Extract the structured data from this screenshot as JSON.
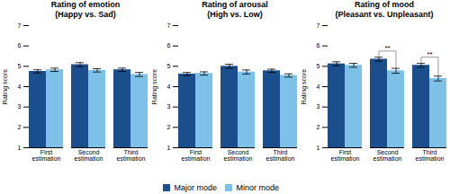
{
  "chart_data": [
    {
      "type": "bar",
      "title": "Rating of emotion\n(Happy vs. Sad)",
      "categories": [
        "First\nestimation",
        "Second\nestimation",
        "Third\nestimation"
      ],
      "series": [
        {
          "name": "Major mode",
          "color": "#1A4E8C",
          "values": [
            4.75,
            5.08,
            4.83
          ],
          "errors": [
            0.08,
            0.1,
            0.08
          ]
        },
        {
          "name": "Minor mode",
          "color": "#7DC0E8",
          "values": [
            4.83,
            4.8,
            4.6
          ],
          "errors": [
            0.08,
            0.08,
            0.1
          ]
        }
      ],
      "ylabel": "Rating score",
      "ylim": [
        1,
        7
      ],
      "yticks": [
        1,
        2,
        3,
        4,
        5,
        6,
        7
      ],
      "legend": "bottom"
    },
    {
      "type": "bar",
      "title": "Rating of arousal\n(High vs. Low)",
      "categories": [
        "First\nestimation",
        "Second\nestimation",
        "Third\nestimation"
      ],
      "series": [
        {
          "name": "Major mode",
          "color": "#1A4E8C",
          "values": [
            4.62,
            5.0,
            4.78
          ],
          "errors": [
            0.08,
            0.1,
            0.08
          ]
        },
        {
          "name": "Minor mode",
          "color": "#7DC0E8",
          "values": [
            4.65,
            4.72,
            4.55
          ],
          "errors": [
            0.08,
            0.1,
            0.08
          ]
        }
      ],
      "ylabel": "Rating score",
      "ylim": [
        1,
        7
      ],
      "yticks": [
        1,
        2,
        3,
        4,
        5,
        6,
        7
      ],
      "legend": "bottom"
    },
    {
      "type": "bar",
      "title": "Rating of mood\n(Pleasant vs. Unpleasant)",
      "categories": [
        "First\nestimation",
        "Second\nestimation",
        "Third\nestimation"
      ],
      "series": [
        {
          "name": "Major mode",
          "color": "#1A4E8C",
          "values": [
            5.12,
            5.35,
            5.05
          ],
          "errors": [
            0.1,
            0.1,
            0.1
          ]
        },
        {
          "name": "Minor mode",
          "color": "#7DC0E8",
          "values": [
            5.05,
            4.78,
            4.4
          ],
          "errors": [
            0.1,
            0.12,
            0.12
          ]
        }
      ],
      "ylabel": "Rating score",
      "ylim": [
        1,
        7
      ],
      "yticks": [
        1,
        2,
        3,
        4,
        5,
        6,
        7
      ],
      "legend": "bottom",
      "annotations": [
        {
          "category": "Second\nestimation",
          "text": "**",
          "color": "#999999"
        },
        {
          "category": "Third\nestimation",
          "text": "**",
          "color": "#999999"
        }
      ]
    }
  ]
}
